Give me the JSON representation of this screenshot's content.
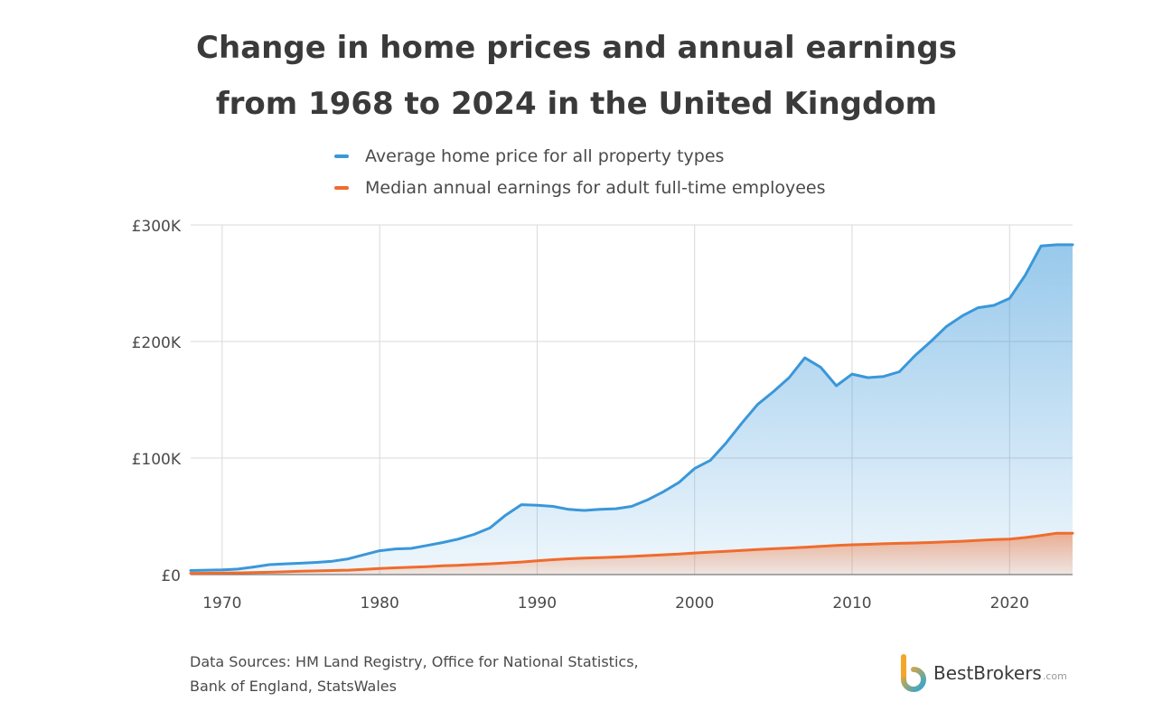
{
  "title": {
    "line1": "Change in home prices and annual earnings",
    "line2": "from 1968 to 2024 in the United Kingdom"
  },
  "footer": {
    "line1": "Data Sources: HM Land Registry, Office for National Statistics,",
    "line2": "Bank of England, StatsWales"
  },
  "brand": {
    "name": "BestBrokers",
    "tld": ".com",
    "icon": "bestbrokers-logo"
  },
  "chart_data": {
    "type": "area",
    "title": "Change in home prices and annual earnings from 1968 to 2024 in the United Kingdom",
    "xlabel": "",
    "ylabel": "",
    "xlim": [
      1968,
      2024
    ],
    "ylim": [
      0,
      300000
    ],
    "x_ticks": [
      1970,
      1980,
      1990,
      2000,
      2010,
      2020
    ],
    "y_ticks": [
      0,
      100000,
      200000,
      300000
    ],
    "y_tick_labels": [
      "£0",
      "£100K",
      "£200K",
      "£300K"
    ],
    "grid": true,
    "legend_position": "top",
    "x": [
      1968,
      1969,
      1970,
      1971,
      1972,
      1973,
      1974,
      1975,
      1976,
      1977,
      1978,
      1979,
      1980,
      1981,
      1982,
      1983,
      1984,
      1985,
      1986,
      1987,
      1988,
      1989,
      1990,
      1991,
      1992,
      1993,
      1994,
      1995,
      1996,
      1997,
      1998,
      1999,
      2000,
      2001,
      2002,
      2003,
      2004,
      2005,
      2006,
      2007,
      2008,
      2009,
      2010,
      2011,
      2012,
      2013,
      2014,
      2015,
      2016,
      2017,
      2018,
      2019,
      2020,
      2021,
      2022,
      2023,
      2024
    ],
    "series": [
      {
        "name": "Average home price for all property types",
        "color": "#3a97d9",
        "values": [
          3500,
          3800,
          4000,
          4700,
          6500,
          8500,
          9200,
          9800,
          10500,
          11500,
          13500,
          17000,
          20500,
          22000,
          22500,
          25000,
          27500,
          30500,
          34500,
          40000,
          51000,
          60000,
          59500,
          58500,
          56000,
          55000,
          56000,
          56500,
          58500,
          64000,
          71000,
          79000,
          91000,
          98000,
          113000,
          130000,
          146000,
          157000,
          169000,
          186000,
          178000,
          162000,
          172000,
          169000,
          170000,
          174000,
          188000,
          200000,
          213000,
          222000,
          229000,
          231000,
          237000,
          257000,
          282000,
          283000,
          283000
        ]
      },
      {
        "name": "Median annual earnings for adult full-time employees",
        "color": "#ef6c2d",
        "values": [
          1100,
          1200,
          1400,
          1500,
          1800,
          2000,
          2400,
          2900,
          3200,
          3500,
          3800,
          4400,
          5200,
          5800,
          6300,
          6800,
          7500,
          8000,
          8600,
          9200,
          10000,
          10800,
          11800,
          12800,
          13600,
          14100,
          14500,
          15000,
          15600,
          16300,
          17000,
          17600,
          18500,
          19300,
          20000,
          20800,
          21500,
          22200,
          22800,
          23500,
          24300,
          25000,
          25600,
          26000,
          26400,
          26800,
          27100,
          27500,
          28100,
          28600,
          29400,
          30000,
          30500,
          31800,
          33500,
          35500,
          35500
        ]
      }
    ]
  }
}
